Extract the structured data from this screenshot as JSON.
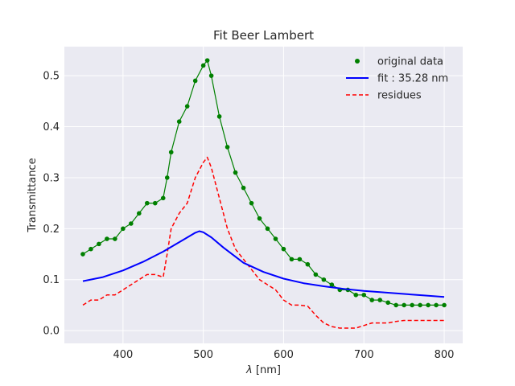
{
  "chart_data": {
    "type": "line",
    "title": "Fit Beer Lambert",
    "xlabel_symbol": "λ",
    "xlabel_rest": " [nm]",
    "ylabel": "Transmittance",
    "xlim": [
      327,
      823
    ],
    "ylim": [
      -0.025,
      0.557
    ],
    "xticks": [
      400,
      500,
      600,
      700,
      800
    ],
    "yticks": [
      0.0,
      0.1,
      0.2,
      0.3,
      0.4,
      0.5
    ],
    "ytick_labels": [
      "0.0",
      "0.1",
      "0.2",
      "0.3",
      "0.4",
      "0.5"
    ],
    "grid": true,
    "legend_position": "top-right",
    "series": [
      {
        "name": "original data",
        "style": "dots",
        "color": "#008000",
        "x": [
          350,
          360,
          370,
          380,
          390,
          400,
          410,
          420,
          430,
          440,
          450,
          455,
          460,
          470,
          480,
          490,
          500,
          505,
          510,
          520,
          530,
          540,
          550,
          560,
          570,
          580,
          590,
          600,
          610,
          620,
          630,
          640,
          650,
          660,
          670,
          680,
          690,
          700,
          710,
          720,
          730,
          740,
          750,
          760,
          770,
          780,
          790,
          800
        ],
        "y": [
          0.15,
          0.16,
          0.17,
          0.18,
          0.18,
          0.2,
          0.21,
          0.23,
          0.25,
          0.25,
          0.26,
          0.3,
          0.35,
          0.41,
          0.44,
          0.49,
          0.52,
          0.53,
          0.5,
          0.42,
          0.36,
          0.31,
          0.28,
          0.25,
          0.22,
          0.2,
          0.18,
          0.16,
          0.14,
          0.14,
          0.13,
          0.11,
          0.1,
          0.09,
          0.08,
          0.08,
          0.07,
          0.07,
          0.06,
          0.06,
          0.055,
          0.05,
          0.05,
          0.05,
          0.05,
          0.05,
          0.05,
          0.05
        ]
      },
      {
        "name": "fit : 35.28 nm",
        "style": "line",
        "color": "#0000ff",
        "x": [
          350,
          375,
          400,
          425,
          450,
          475,
          490,
          495,
          500,
          510,
          525,
          550,
          575,
          600,
          625,
          650,
          675,
          700,
          725,
          750,
          775,
          800
        ],
        "y": [
          0.097,
          0.105,
          0.118,
          0.135,
          0.155,
          0.178,
          0.192,
          0.195,
          0.193,
          0.183,
          0.163,
          0.133,
          0.115,
          0.102,
          0.093,
          0.087,
          0.082,
          0.078,
          0.075,
          0.072,
          0.069,
          0.066
        ]
      },
      {
        "name": "residues",
        "style": "dashed",
        "color": "#ff0000",
        "x": [
          350,
          360,
          370,
          380,
          390,
          400,
          410,
          420,
          430,
          440,
          450,
          455,
          460,
          470,
          480,
          490,
          500,
          505,
          510,
          520,
          530,
          540,
          550,
          560,
          570,
          580,
          590,
          600,
          610,
          620,
          630,
          640,
          650,
          660,
          670,
          680,
          690,
          700,
          710,
          720,
          730,
          740,
          750,
          760,
          770,
          780,
          790,
          800
        ],
        "y": [
          0.05,
          0.06,
          0.06,
          0.07,
          0.07,
          0.08,
          0.09,
          0.1,
          0.11,
          0.11,
          0.105,
          0.15,
          0.2,
          0.23,
          0.25,
          0.3,
          0.33,
          0.34,
          0.32,
          0.26,
          0.2,
          0.16,
          0.14,
          0.12,
          0.1,
          0.09,
          0.08,
          0.06,
          0.05,
          0.05,
          0.048,
          0.03,
          0.015,
          0.008,
          0.005,
          0.005,
          0.005,
          0.01,
          0.015,
          0.015,
          0.015,
          0.018,
          0.02,
          0.02,
          0.02,
          0.02,
          0.02,
          0.02
        ]
      }
    ]
  }
}
